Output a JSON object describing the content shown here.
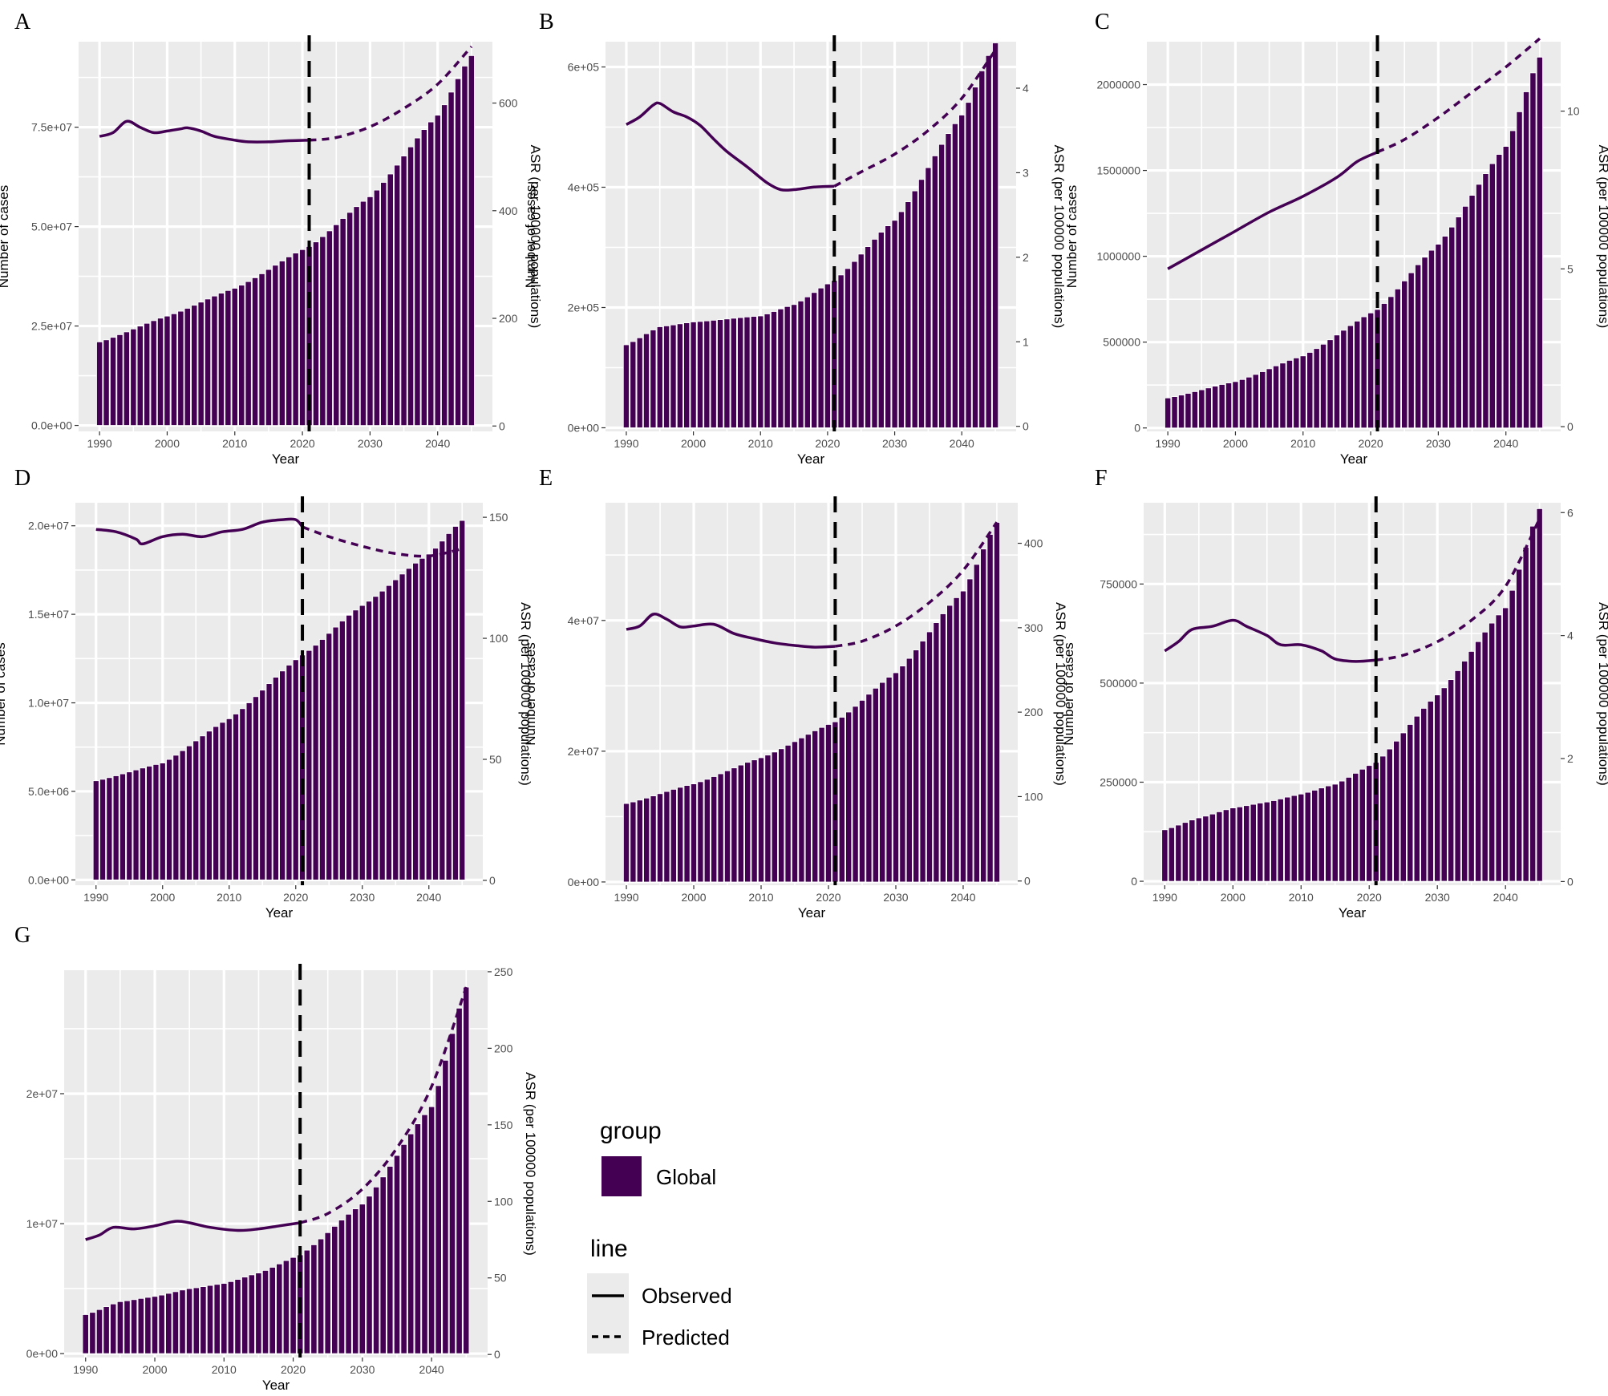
{
  "figure": {
    "bar_color": "#440154",
    "line_color": "#440154",
    "panel_bg": "#ebebeb",
    "grid_color": "#ffffff",
    "divider_year": 2021
  },
  "legend": {
    "group_title": "group",
    "group_item": "Global",
    "line_title": "line",
    "observed_label": "Observed",
    "predicted_label": "Predicted"
  },
  "chart_data": [
    {
      "panel": "A",
      "type": "bar",
      "xlabel": "Year",
      "ylabel": "Number of cases",
      "y2label": "ASR (per 100000 populations)",
      "xticks": [
        1990,
        2000,
        2010,
        2020,
        2030,
        2040
      ],
      "yticks": [
        0,
        25000000,
        50000000,
        75000000
      ],
      "yticklabels": [
        "0.0e+00",
        "2.5e+07",
        "5.0e+07",
        "7.5e+07"
      ],
      "ylim": [
        -1500000,
        96500000
      ],
      "y2ticks": [
        0,
        200,
        400,
        600
      ],
      "y2ticklabels": [
        "0",
        "200",
        "400",
        "600"
      ],
      "y2lim": [
        -10,
        714
      ],
      "cases_points": [
        [
          1990,
          21000000
        ],
        [
          2000,
          27500000
        ],
        [
          2010,
          34500000
        ],
        [
          2021,
          45000000
        ],
        [
          2030,
          57500000
        ],
        [
          2040,
          78000000
        ],
        [
          2045,
          93000000
        ]
      ],
      "asr_observed": [
        [
          1990,
          538
        ],
        [
          1992,
          545
        ],
        [
          1994,
          566
        ],
        [
          1996,
          555
        ],
        [
          1998,
          545
        ],
        [
          2000,
          548
        ],
        [
          2002,
          552
        ],
        [
          2003,
          554
        ],
        [
          2005,
          548
        ],
        [
          2007,
          538
        ],
        [
          2010,
          531
        ],
        [
          2012,
          528
        ],
        [
          2015,
          528
        ],
        [
          2018,
          530
        ],
        [
          2021,
          531
        ]
      ],
      "asr_predicted": [
        [
          2021,
          531
        ],
        [
          2025,
          536
        ],
        [
          2030,
          556
        ],
        [
          2035,
          590
        ],
        [
          2040,
          635
        ],
        [
          2045,
          705
        ]
      ]
    },
    {
      "panel": "B",
      "type": "bar",
      "xlabel": "Year",
      "ylabel": "Number of cases",
      "y2label": "ASR (per 100000 populations)",
      "xticks": [
        1990,
        2000,
        2010,
        2020,
        2030,
        2040
      ],
      "yticks": [
        0,
        200000,
        400000,
        600000
      ],
      "yticklabels": [
        "0e+00",
        "2e+05",
        "4e+05",
        "6e+05"
      ],
      "ylim": [
        -6000,
        642000
      ],
      "y2ticks": [
        0,
        1,
        2,
        3,
        4
      ],
      "y2ticklabels": [
        "0",
        "1",
        "2",
        "3",
        "4"
      ],
      "y2lim": [
        -0.06,
        4.55
      ],
      "cases_points": [
        [
          1990,
          138000
        ],
        [
          1995,
          168000
        ],
        [
          2000,
          176000
        ],
        [
          2010,
          186000
        ],
        [
          2015,
          205000
        ],
        [
          2021,
          245000
        ],
        [
          2030,
          345000
        ],
        [
          2040,
          520000
        ],
        [
          2045,
          640000
        ]
      ],
      "asr_observed": [
        [
          1990,
          3.57
        ],
        [
          1992,
          3.66
        ],
        [
          1994,
          3.8
        ],
        [
          1995,
          3.82
        ],
        [
          1997,
          3.72
        ],
        [
          1999,
          3.66
        ],
        [
          2001,
          3.56
        ],
        [
          2003,
          3.4
        ],
        [
          2005,
          3.25
        ],
        [
          2008,
          3.07
        ],
        [
          2011,
          2.88
        ],
        [
          2013,
          2.8
        ],
        [
          2015,
          2.8
        ],
        [
          2018,
          2.83
        ],
        [
          2021,
          2.84
        ]
      ],
      "asr_predicted": [
        [
          2021,
          2.84
        ],
        [
          2025,
          3.01
        ],
        [
          2030,
          3.22
        ],
        [
          2035,
          3.5
        ],
        [
          2040,
          3.88
        ],
        [
          2045,
          4.45
        ]
      ]
    },
    {
      "panel": "C",
      "type": "bar",
      "xlabel": "Year",
      "ylabel": "Number of cases",
      "y2label": "ASR (per 100000 populations)",
      "xticks": [
        1990,
        2000,
        2010,
        2020,
        2030,
        2040
      ],
      "yticks": [
        0,
        500000,
        1000000,
        1500000,
        2000000
      ],
      "yticklabels": [
        "0",
        "500000",
        "1000000",
        "1500000",
        "2000000"
      ],
      "ylim": [
        -20000,
        2250000
      ],
      "y2ticks": [
        0,
        5,
        10
      ],
      "y2ticklabels": [
        "0",
        "5",
        "10"
      ],
      "y2lim": [
        -0.15,
        12.2
      ],
      "cases_points": [
        [
          1990,
          175000
        ],
        [
          2000,
          270000
        ],
        [
          2010,
          420000
        ],
        [
          2021,
          690000
        ],
        [
          2030,
          1070000
        ],
        [
          2040,
          1640000
        ],
        [
          2045,
          2160000
        ]
      ],
      "asr_observed": [
        [
          1990,
          5.0
        ],
        [
          1995,
          5.6
        ],
        [
          2000,
          6.2
        ],
        [
          2005,
          6.8
        ],
        [
          2010,
          7.3
        ],
        [
          2015,
          7.9
        ],
        [
          2018,
          8.4
        ],
        [
          2021,
          8.7
        ]
      ],
      "asr_predicted": [
        [
          2021,
          8.7
        ],
        [
          2025,
          9.1
        ],
        [
          2030,
          9.8
        ],
        [
          2035,
          10.6
        ],
        [
          2040,
          11.4
        ],
        [
          2045,
          12.3
        ]
      ]
    },
    {
      "panel": "D",
      "type": "bar",
      "xlabel": "Year",
      "ylabel": "Number of cases",
      "y2label": "ASR (per 100000 populations)",
      "xticks": [
        1990,
        2000,
        2010,
        2020,
        2030,
        2040
      ],
      "yticks": [
        0,
        5000000,
        10000000,
        15000000,
        20000000
      ],
      "yticklabels": [
        "0.0e+00",
        "5.0e+06",
        "1.0e+07",
        "1.5e+07",
        "2.0e+07"
      ],
      "ylim": [
        -300000,
        21300000
      ],
      "y2ticks": [
        0,
        50,
        100,
        150
      ],
      "y2ticklabels": [
        "0",
        "50",
        "100",
        "150"
      ],
      "y2lim": [
        -2,
        156
      ],
      "cases_points": [
        [
          1990,
          5600000
        ],
        [
          2000,
          6600000
        ],
        [
          2010,
          9100000
        ],
        [
          2021,
          12700000
        ],
        [
          2030,
          15500000
        ],
        [
          2040,
          18400000
        ],
        [
          2045,
          20300000
        ]
      ],
      "asr_observed": [
        [
          1990,
          145
        ],
        [
          1993,
          144
        ],
        [
          1996,
          141
        ],
        [
          1997,
          139
        ],
        [
          2000,
          142
        ],
        [
          2003,
          143
        ],
        [
          2006,
          142
        ],
        [
          2009,
          144
        ],
        [
          2012,
          145
        ],
        [
          2015,
          148
        ],
        [
          2018,
          149
        ],
        [
          2020,
          149
        ],
        [
          2021,
          146
        ]
      ],
      "asr_predicted": [
        [
          2021,
          146
        ],
        [
          2025,
          142
        ],
        [
          2030,
          138
        ],
        [
          2035,
          135
        ],
        [
          2040,
          134
        ],
        [
          2045,
          137
        ]
      ]
    },
    {
      "panel": "E",
      "type": "bar",
      "xlabel": "Year",
      "ylabel": "Number of cases",
      "y2label": "ASR (per 100000 populations)",
      "xticks": [
        1990,
        2000,
        2010,
        2020,
        2030,
        2040
      ],
      "yticks": [
        0,
        20000000,
        40000000
      ],
      "yticklabels": [
        "0e+00",
        "2e+07",
        "4e+07"
      ],
      "ylim": [
        -500000,
        58000000
      ],
      "y2ticks": [
        0,
        100,
        200,
        300,
        400
      ],
      "y2ticklabels": [
        "0",
        "100",
        "200",
        "300",
        "400"
      ],
      "y2lim": [
        -5,
        448
      ],
      "cases_points": [
        [
          1990,
          12000000
        ],
        [
          2000,
          15000000
        ],
        [
          2010,
          19000000
        ],
        [
          2021,
          24500000
        ],
        [
          2030,
          32000000
        ],
        [
          2040,
          44500000
        ],
        [
          2045,
          55000000
        ]
      ],
      "asr_observed": [
        [
          1990,
          298
        ],
        [
          1992,
          302
        ],
        [
          1994,
          316
        ],
        [
          1996,
          310
        ],
        [
          1998,
          301
        ],
        [
          2000,
          302
        ],
        [
          2003,
          304
        ],
        [
          2006,
          293
        ],
        [
          2009,
          287
        ],
        [
          2012,
          282
        ],
        [
          2015,
          279
        ],
        [
          2018,
          277
        ],
        [
          2021,
          278
        ]
      ],
      "asr_predicted": [
        [
          2021,
          278
        ],
        [
          2025,
          284
        ],
        [
          2030,
          302
        ],
        [
          2035,
          330
        ],
        [
          2040,
          368
        ],
        [
          2045,
          425
        ]
      ]
    },
    {
      "panel": "F",
      "type": "bar",
      "xlabel": "Year",
      "ylabel": "Number of cases",
      "y2label": "ASR (per 100000 populations)",
      "xticks": [
        1990,
        2000,
        2010,
        2020,
        2030,
        2040
      ],
      "yticks": [
        0,
        250000,
        500000,
        750000
      ],
      "yticklabels": [
        "0",
        "250000",
        "500000",
        "750000"
      ],
      "ylim": [
        -10000,
        955000
      ],
      "y2ticks": [
        0,
        2,
        4,
        6
      ],
      "y2ticklabels": [
        "0",
        "2",
        "4",
        "6"
      ],
      "y2lim": [
        -0.06,
        6.16
      ],
      "cases_points": [
        [
          1990,
          130000
        ],
        [
          1995,
          160000
        ],
        [
          2000,
          185000
        ],
        [
          2005,
          200000
        ],
        [
          2010,
          220000
        ],
        [
          2015,
          245000
        ],
        [
          2021,
          300000
        ],
        [
          2030,
          470000
        ],
        [
          2040,
          690000
        ],
        [
          2045,
          940000
        ]
      ],
      "asr_observed": [
        [
          1990,
          3.75
        ],
        [
          1992,
          3.9
        ],
        [
          1994,
          4.1
        ],
        [
          1997,
          4.15
        ],
        [
          2000,
          4.25
        ],
        [
          2002,
          4.15
        ],
        [
          2005,
          4.0
        ],
        [
          2007,
          3.85
        ],
        [
          2010,
          3.85
        ],
        [
          2013,
          3.75
        ],
        [
          2015,
          3.62
        ],
        [
          2018,
          3.58
        ],
        [
          2021,
          3.6
        ]
      ],
      "asr_predicted": [
        [
          2021,
          3.6
        ],
        [
          2025,
          3.68
        ],
        [
          2030,
          3.9
        ],
        [
          2035,
          4.25
        ],
        [
          2040,
          4.8
        ],
        [
          2045,
          5.9
        ]
      ]
    },
    {
      "panel": "G",
      "type": "bar",
      "xlabel": "Year",
      "ylabel": "Number of cases",
      "y2label": "ASR (per 100000 populations)",
      "xticks": [
        1990,
        2000,
        2010,
        2020,
        2030,
        2040
      ],
      "yticks": [
        0,
        10000000,
        20000000
      ],
      "yticklabels": [
        "0e+00",
        "1e+07",
        "2e+07"
      ],
      "ylim": [
        -300000,
        29500000
      ],
      "y2ticks": [
        0,
        50,
        100,
        150,
        200,
        250
      ],
      "y2ticklabels": [
        "0",
        "50",
        "100",
        "150",
        "200",
        "250"
      ],
      "y2lim": [
        -2,
        251
      ],
      "cases_points": [
        [
          1990,
          3000000
        ],
        [
          1995,
          4000000
        ],
        [
          2000,
          4400000
        ],
        [
          2005,
          5000000
        ],
        [
          2010,
          5400000
        ],
        [
          2015,
          6200000
        ],
        [
          2021,
          7600000
        ],
        [
          2030,
          11500000
        ],
        [
          2040,
          19000000
        ],
        [
          2045,
          28200000
        ]
      ],
      "asr_observed": [
        [
          1990,
          75
        ],
        [
          1992,
          78
        ],
        [
          1994,
          83
        ],
        [
          1997,
          82
        ],
        [
          2000,
          84
        ],
        [
          2003,
          87
        ],
        [
          2005,
          86
        ],
        [
          2008,
          83
        ],
        [
          2012,
          81
        ],
        [
          2015,
          82
        ],
        [
          2018,
          84
        ],
        [
          2021,
          86
        ]
      ],
      "asr_predicted": [
        [
          2021,
          86
        ],
        [
          2025,
          92
        ],
        [
          2030,
          108
        ],
        [
          2035,
          135
        ],
        [
          2040,
          175
        ],
        [
          2045,
          240
        ]
      ]
    }
  ]
}
